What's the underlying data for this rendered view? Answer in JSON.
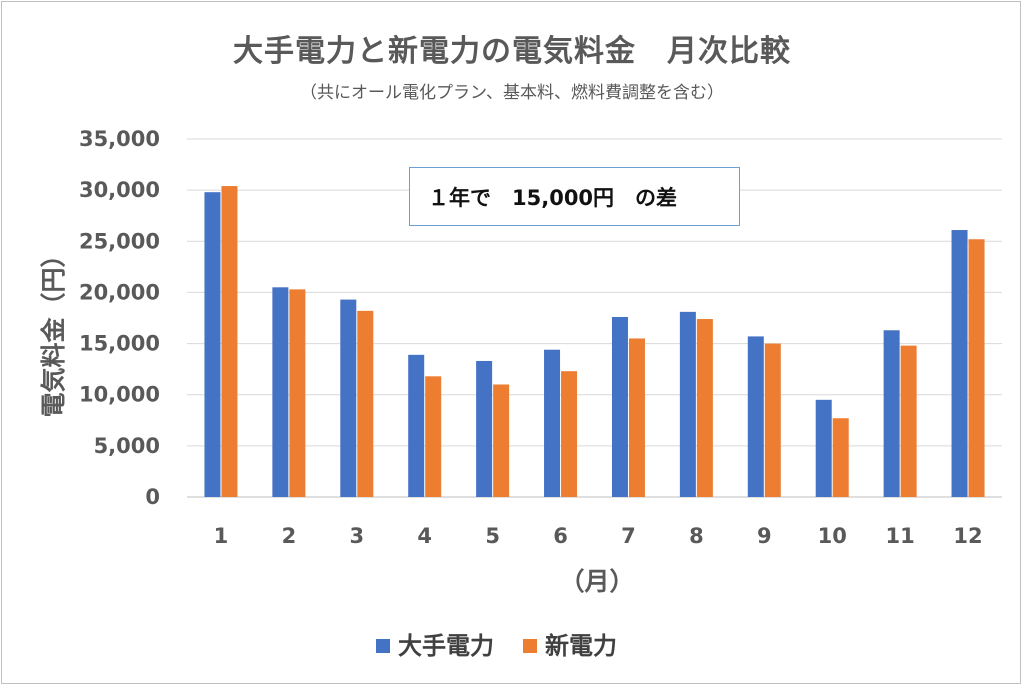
{
  "chart_data": {
    "type": "bar",
    "title": "大手電力と新電力の電気料金　月次比較",
    "subtitle": "（共にオール電化プラン、基本料、燃料費調整を含む）",
    "xlabel": "（月）",
    "ylabel": "電気料金（円）",
    "categories": [
      "1",
      "2",
      "3",
      "4",
      "5",
      "6",
      "7",
      "8",
      "9",
      "10",
      "11",
      "12"
    ],
    "series": [
      {
        "name": "大手電力",
        "color": "#4472c4",
        "values": [
          29800,
          20500,
          19300,
          13900,
          13300,
          14400,
          17600,
          18100,
          15700,
          9500,
          16300,
          26100
        ]
      },
      {
        "name": "新電力",
        "color": "#ed7d31",
        "values": [
          30400,
          20300,
          18200,
          11800,
          11000,
          12300,
          15500,
          17400,
          15000,
          7700,
          14800,
          25200
        ]
      }
    ],
    "ylim": [
      0,
      35000
    ],
    "yticks": [
      "0",
      "5,000",
      "10,000",
      "15,000",
      "20,000",
      "25,000",
      "30,000",
      "35,000"
    ],
    "ytick_values": [
      0,
      5000,
      10000,
      15000,
      20000,
      25000,
      30000,
      35000
    ],
    "grid": true,
    "legend_position": "bottom",
    "annotation": "１年で　15,000円　の差"
  }
}
